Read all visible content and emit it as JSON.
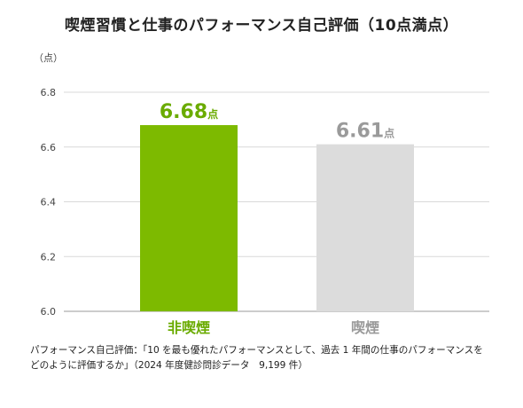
{
  "chart_data": {
    "type": "bar",
    "title": "喫煙習慣と仕事のパフォーマンス自己評価（10点満点）",
    "unit_label": "（点）",
    "categories": [
      "非喫煙",
      "喫煙"
    ],
    "values": [
      6.68,
      6.61
    ],
    "value_labels": [
      "6.68",
      "6.61"
    ],
    "value_suffix": "点",
    "colors": [
      "#7dba00",
      "#dcdcdc"
    ],
    "label_colors": [
      "#6aab00",
      "#9a9a9a"
    ],
    "ylim": [
      6.0,
      6.8
    ],
    "yticks": [
      6.0,
      6.2,
      6.4,
      6.6,
      6.8
    ],
    "ytick_labels": [
      "6.0",
      "6.2",
      "6.4",
      "6.6",
      "6.8"
    ],
    "grid": true
  },
  "footnote": {
    "line1": "パフォーマンス自己評価：「10 を最も優れたパフォーマンスとして、過去 1 年間の仕事のパフォーマンスを",
    "line2": "どのように評価するか」（2024 年度健診問診データ　9,199 件）"
  }
}
